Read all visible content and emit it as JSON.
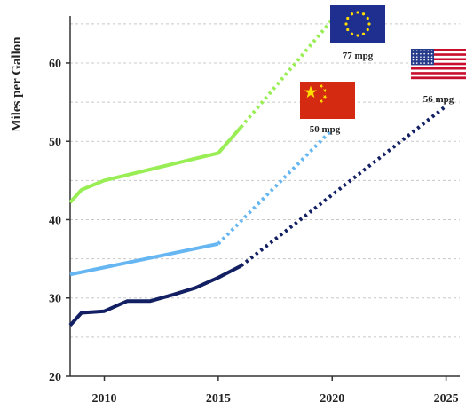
{
  "chart_data": {
    "type": "line",
    "title": "",
    "ylabel": "Miles per Gallon",
    "xlabel": "",
    "xlim": [
      2008.5,
      2025.6
    ],
    "ylim": [
      20,
      66
    ],
    "x_ticks": [
      2010,
      2015,
      2020,
      2025
    ],
    "y_ticks": [
      20,
      30,
      40,
      50,
      60
    ],
    "grid": true,
    "legend": "none",
    "series": [
      {
        "flag": "eu-flag",
        "color": "#99EE55",
        "historical": [
          [
            2008.5,
            42.2
          ],
          [
            2009,
            43.8
          ],
          [
            2010,
            45
          ],
          [
            2011,
            45.7
          ],
          [
            2012,
            46.4
          ],
          [
            2013,
            47.1
          ],
          [
            2014,
            47.8
          ],
          [
            2015,
            48.5
          ],
          [
            2016,
            51.8
          ]
        ],
        "projected": [
          [
            2016,
            51.8
          ],
          [
            2020,
            65.5
          ]
        ],
        "target_label": "77 mpg"
      },
      {
        "flag": "china-flag",
        "color": "#66B6F2",
        "historical": [
          [
            2008.5,
            33
          ],
          [
            2015,
            36.9
          ]
        ],
        "projected": [
          [
            2015,
            36.9
          ],
          [
            2020,
            51.5
          ]
        ],
        "target_label": "50 mpg"
      },
      {
        "flag": "usa-flag",
        "color": "#122063",
        "historical": [
          [
            2008.5,
            26.5
          ],
          [
            2009,
            28.1
          ],
          [
            2010,
            28.3
          ],
          [
            2011,
            29.6
          ],
          [
            2012,
            29.6
          ],
          [
            2013,
            30.4
          ],
          [
            2014,
            31.3
          ],
          [
            2015,
            32.6
          ],
          [
            2016,
            34.1
          ]
        ],
        "projected": [
          [
            2016,
            34.1
          ],
          [
            2025,
            54.5
          ]
        ],
        "target_label": "56 mpg"
      }
    ]
  },
  "colors": {
    "axis": "#333333",
    "grid": "#c8c8c8",
    "eu_blue": "#1f2f8f",
    "eu_star": "#ffdd00",
    "china_red": "#d42a12",
    "china_star": "#ffde00",
    "us_red": "#c8102e",
    "us_blue": "#283c8c"
  }
}
